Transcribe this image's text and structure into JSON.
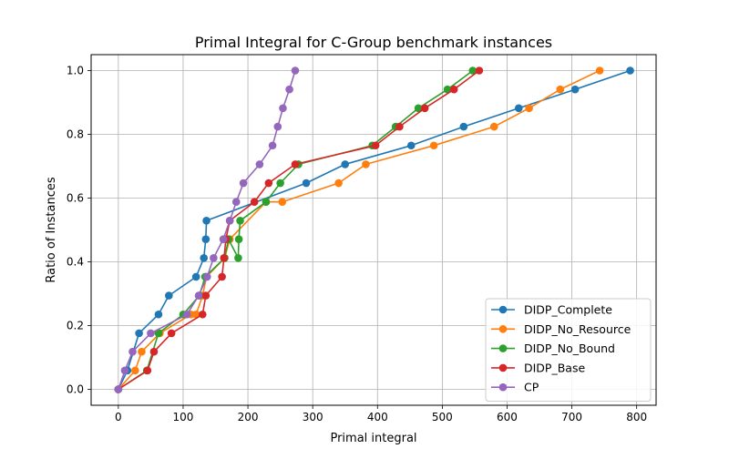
{
  "chart_data": {
    "type": "line",
    "title": "Primal Integral for C-Group benchmark instances",
    "xlabel": "Primal integral",
    "ylabel": "Ratio of Instances",
    "xlim": [
      -42,
      830
    ],
    "ylim": [
      -0.05,
      1.05
    ],
    "xticks": [
      0,
      100,
      200,
      300,
      400,
      500,
      600,
      700,
      800
    ],
    "yticks": [
      0.0,
      0.2,
      0.4,
      0.6,
      0.8,
      1.0
    ],
    "xtick_labels": [
      "0",
      "100",
      "200",
      "300",
      "400",
      "500",
      "600",
      "700",
      "800"
    ],
    "ytick_labels": [
      "0.0",
      "0.2",
      "0.4",
      "0.6",
      "0.8",
      "1.0"
    ],
    "grid": true,
    "legend_position": "lower right",
    "series": [
      {
        "name": "DIDP_Complete",
        "color": "#1f77b4",
        "x": [
          0,
          14,
          32,
          62,
          78,
          120,
          132,
          135,
          136,
          290,
          350,
          452,
          533,
          618,
          705,
          790
        ],
        "y": [
          0.0,
          0.059,
          0.176,
          0.235,
          0.294,
          0.353,
          0.412,
          0.471,
          0.529,
          0.647,
          0.706,
          0.765,
          0.824,
          0.882,
          0.941,
          1.0
        ]
      },
      {
        "name": "DIDP_No_Resource",
        "color": "#ff7f0e",
        "x": [
          0,
          26,
          36,
          64,
          112,
          120,
          130,
          136,
          164,
          172,
          228,
          253,
          340,
          382,
          487,
          580,
          634,
          682,
          743
        ],
        "y": [
          0.0,
          0.059,
          0.118,
          0.176,
          0.235,
          0.235,
          0.294,
          0.353,
          0.412,
          0.471,
          0.588,
          0.588,
          0.647,
          0.706,
          0.765,
          0.824,
          0.882,
          0.941,
          1.0
        ]
      },
      {
        "name": "DIDP_No_Bound",
        "color": "#2ca02c",
        "x": [
          0,
          44,
          62,
          100,
          125,
          134,
          164,
          170,
          185,
          186,
          188,
          228,
          250,
          278,
          392,
          428,
          463,
          508,
          547
        ],
        "y": [
          0.0,
          0.059,
          0.176,
          0.235,
          0.294,
          0.353,
          0.412,
          0.471,
          0.412,
          0.471,
          0.529,
          0.588,
          0.647,
          0.706,
          0.765,
          0.824,
          0.882,
          0.941,
          1.0
        ]
      },
      {
        "name": "DIDP_Base",
        "color": "#d62728",
        "x": [
          0,
          45,
          55,
          82,
          130,
          135,
          160,
          163,
          166,
          172,
          210,
          232,
          273,
          397,
          434,
          473,
          518,
          557
        ],
        "y": [
          0.0,
          0.059,
          0.118,
          0.176,
          0.235,
          0.294,
          0.353,
          0.412,
          0.471,
          0.529,
          0.588,
          0.647,
          0.706,
          0.765,
          0.824,
          0.882,
          0.941,
          1.0
        ]
      },
      {
        "name": "CP",
        "color": "#9467bd",
        "x": [
          0,
          10,
          22,
          50,
          106,
          124,
          137,
          147,
          162,
          172,
          182,
          193,
          218,
          238,
          246,
          254,
          264,
          273
        ],
        "y": [
          0.0,
          0.059,
          0.118,
          0.176,
          0.235,
          0.294,
          0.353,
          0.412,
          0.471,
          0.529,
          0.588,
          0.647,
          0.706,
          0.765,
          0.824,
          0.882,
          0.941,
          1.0
        ]
      }
    ]
  }
}
